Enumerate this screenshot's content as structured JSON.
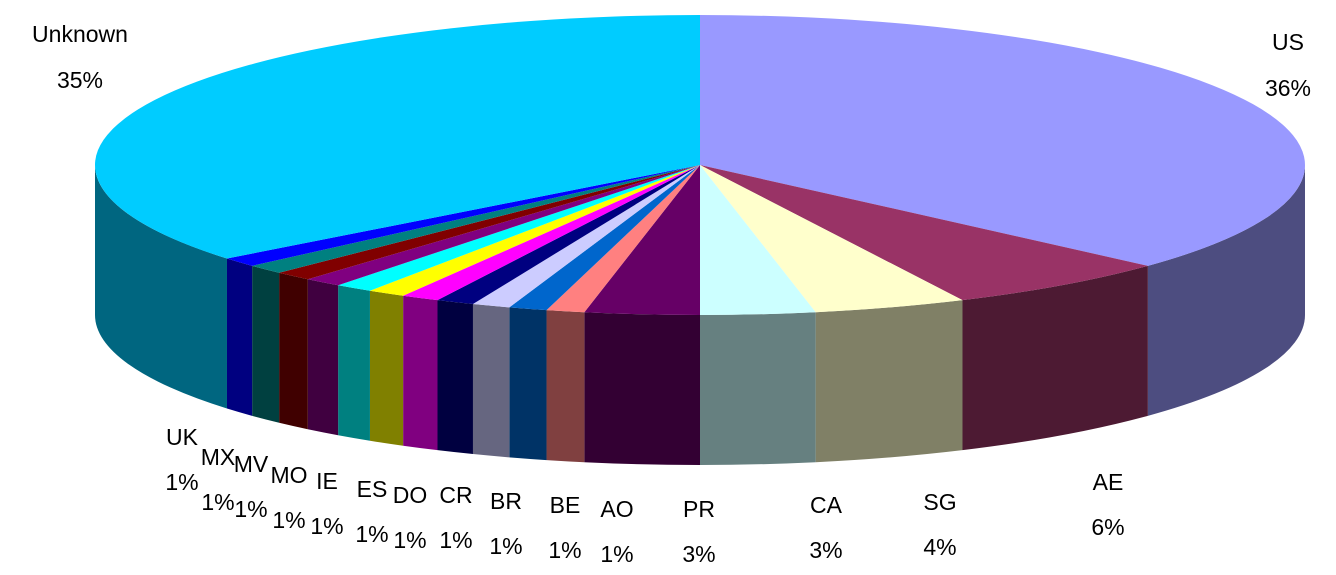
{
  "chart_data": {
    "type": "pie",
    "title": "",
    "slices": [
      {
        "label": "US",
        "pct": "36%",
        "value": 36,
        "top": "#9999ff",
        "side": "#4d4d80"
      },
      {
        "label": "AE",
        "pct": "6%",
        "value": 6,
        "top": "#993366",
        "side": "#4d1a33"
      },
      {
        "label": "SG",
        "pct": "4%",
        "value": 4,
        "top": "#ffffcc",
        "side": "#808066"
      },
      {
        "label": "CA",
        "pct": "3%",
        "value": 3,
        "top": "#ccffff",
        "side": "#668080"
      },
      {
        "label": "PR",
        "pct": "3%",
        "value": 3,
        "top": "#660066",
        "side": "#330033"
      },
      {
        "label": "AO",
        "pct": "1%",
        "value": 1,
        "top": "#ff8080",
        "side": "#804040"
      },
      {
        "label": "BE",
        "pct": "1%",
        "value": 1,
        "top": "#0066cc",
        "side": "#003366"
      },
      {
        "label": "BR",
        "pct": "1%",
        "value": 1,
        "top": "#ccccff",
        "side": "#666680"
      },
      {
        "label": "CR",
        "pct": "1%",
        "value": 1,
        "top": "#000080",
        "side": "#000040"
      },
      {
        "label": "DO",
        "pct": "1%",
        "value": 1,
        "top": "#ff00ff",
        "side": "#800080"
      },
      {
        "label": "ES",
        "pct": "1%",
        "value": 1,
        "top": "#ffff00",
        "side": "#808000"
      },
      {
        "label": "IE",
        "pct": "1%",
        "value": 1,
        "top": "#00ffff",
        "side": "#008080"
      },
      {
        "label": "MO",
        "pct": "1%",
        "value": 1,
        "top": "#800080",
        "side": "#400040"
      },
      {
        "label": "MV",
        "pct": "1%",
        "value": 1,
        "top": "#800000",
        "side": "#400000"
      },
      {
        "label": "MX",
        "pct": "1%",
        "value": 1,
        "top": "#008080",
        "side": "#004040"
      },
      {
        "label": "UK",
        "pct": "1%",
        "value": 1,
        "top": "#0000ff",
        "side": "#000080"
      },
      {
        "label": "Unknown",
        "pct": "35%",
        "value": 35,
        "top": "#00ccff",
        "side": "#006680"
      }
    ]
  }
}
